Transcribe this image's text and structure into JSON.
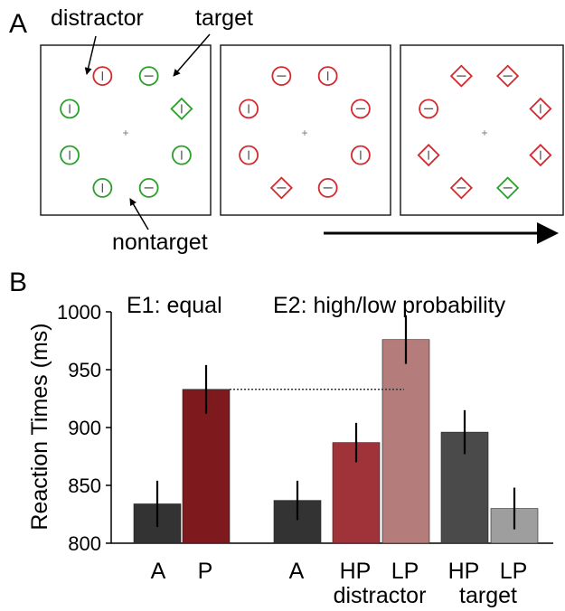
{
  "panel_a": {
    "label": "A",
    "callouts": {
      "distractor": "distractor",
      "target": "target",
      "nontarget": "nontarget"
    },
    "fixation": "+",
    "colors": {
      "distractor": "#d22a2f",
      "nontarget": "#2aa02a",
      "target": "#2aa02a"
    }
  },
  "panel_b": {
    "label": "B",
    "group_labels": {
      "e1": "E1: equal",
      "e2": "E2: high/low probability"
    },
    "category_labels": [
      "A",
      "P",
      "A",
      "HP",
      "LP",
      "HP",
      "LP"
    ],
    "subgroup_labels": {
      "distractor": "distractor",
      "target": "target"
    }
  },
  "chart_data": {
    "type": "bar",
    "ylabel": "Reaction Times (ms)",
    "ylim": [
      800,
      1000
    ],
    "yticks": [
      800,
      850,
      900,
      950,
      1000
    ],
    "categories": [
      "A",
      "P",
      "A",
      "HP",
      "LP",
      "HP",
      "LP"
    ],
    "values": [
      834,
      933,
      837,
      887,
      976,
      896,
      830
    ],
    "error": [
      20,
      21,
      17,
      17,
      21,
      19,
      18
    ],
    "colors": [
      "#333333",
      "#7e1a1e",
      "#333333",
      "#a0333a",
      "#b57c7c",
      "#4a4a4a",
      "#9e9e9e"
    ],
    "reference_line": 933
  }
}
